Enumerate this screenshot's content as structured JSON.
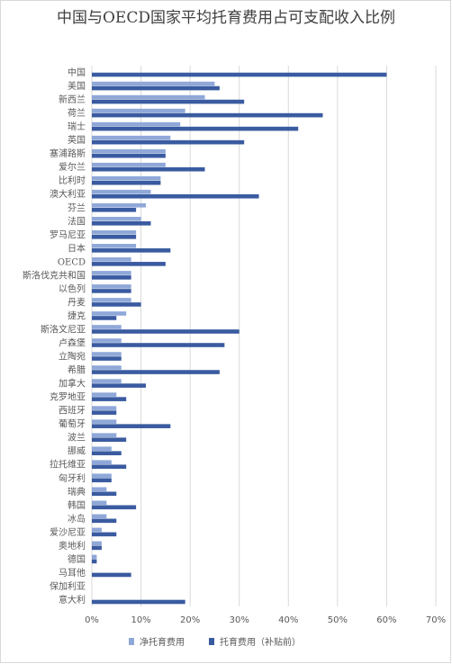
{
  "chart_data": {
    "type": "bar",
    "orientation": "horizontal",
    "title": "中国与OECD国家平均托育费用占可支配收入比例",
    "categories": [
      "中国",
      "美国",
      "新西兰",
      "荷兰",
      "瑞士",
      "英国",
      "塞浦路斯",
      "爱尔兰",
      "比利时",
      "澳大利亚",
      "芬兰",
      "法国",
      "罗马尼亚",
      "日本",
      "OECD",
      "斯洛伐克共和国",
      "以色列",
      "丹麦",
      "捷克",
      "斯洛文尼亚",
      "卢森堡",
      "立陶宛",
      "希腊",
      "加拿大",
      "克罗地亚",
      "西班牙",
      "葡萄牙",
      "波兰",
      "挪威",
      "拉托维亚",
      "匈牙利",
      "瑞典",
      "韩国",
      "冰岛",
      "爱沙尼亚",
      "奥地利",
      "德国",
      "马耳他",
      "保加利亚",
      "意大利"
    ],
    "series": [
      {
        "name": "净托育费用",
        "color": "#8fa8d8",
        "values": [
          null,
          25,
          23,
          19,
          18,
          16,
          15,
          15,
          14,
          12,
          11,
          10,
          9,
          9,
          8,
          8,
          8,
          8,
          7,
          6,
          6,
          6,
          6,
          6,
          5,
          5,
          5,
          5,
          4,
          4,
          4,
          3,
          3,
          3,
          2,
          2,
          1,
          null,
          null,
          null
        ]
      },
      {
        "name": "托育费用（补贴前）",
        "color": "#3a5ba0",
        "values": [
          60,
          26,
          31,
          47,
          42,
          31,
          15,
          23,
          14,
          34,
          9,
          12,
          9,
          16,
          15,
          8,
          8,
          10,
          5,
          30,
          27,
          6,
          26,
          11,
          7,
          5,
          16,
          7,
          6,
          7,
          4,
          5,
          9,
          5,
          5,
          2,
          1,
          8,
          0,
          19
        ]
      }
    ],
    "x_ticks": [
      "0%",
      "10%",
      "20%",
      "30%",
      "40%",
      "50%",
      "60%",
      "70%"
    ],
    "xlim": [
      0,
      70
    ],
    "legend_position": "bottom",
    "grid": true
  }
}
